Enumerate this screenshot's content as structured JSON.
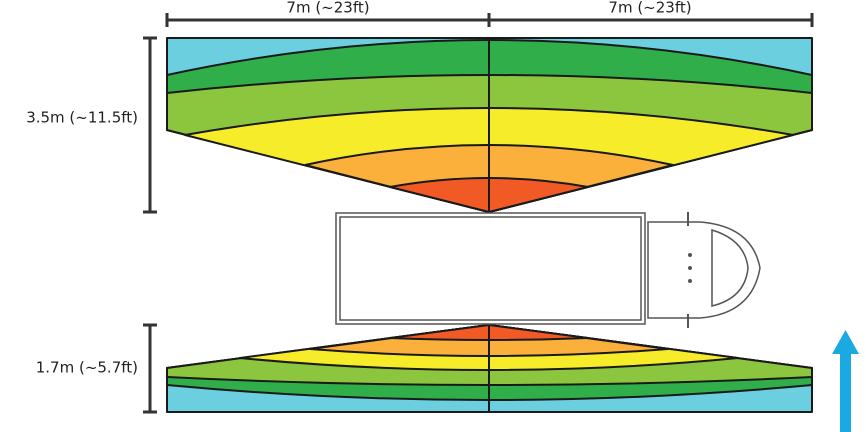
{
  "dimensions": {
    "top_left": "7m (~23ft)",
    "top_right": "7m (~23ft)",
    "upper_zone_depth": "3.5m (~11.5ft)",
    "lower_zone_depth": "1.7m (~5.7ft)"
  }
}
